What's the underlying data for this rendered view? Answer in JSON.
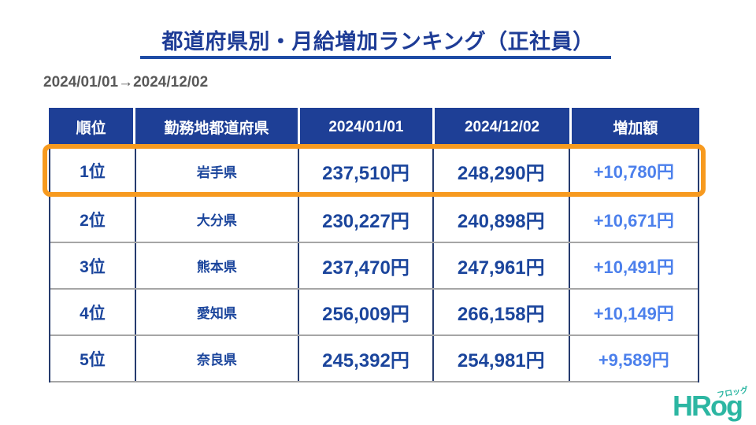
{
  "slide": {
    "title": "都道府県別・月給増加ランキング（正社員）",
    "period": "2024/01/01→2024/12/02"
  },
  "table": {
    "headers": [
      "順位",
      "勤務地都道府県",
      "2024/01/01",
      "2024/12/02",
      "増加額"
    ],
    "rows": [
      {
        "rank": "1位",
        "prefecture": "岩手県",
        "start": "237,510円",
        "end": "248,290円",
        "increase": "+10,780円",
        "highlighted": true
      },
      {
        "rank": "2位",
        "prefecture": "大分県",
        "start": "230,227円",
        "end": "240,898円",
        "increase": "+10,671円",
        "highlighted": false
      },
      {
        "rank": "3位",
        "prefecture": "熊本県",
        "start": "237,470円",
        "end": "247,961円",
        "increase": "+10,491円",
        "highlighted": false
      },
      {
        "rank": "4位",
        "prefecture": "愛知県",
        "start": "256,009円",
        "end": "266,158円",
        "increase": "+10,149円",
        "highlighted": false
      },
      {
        "rank": "5位",
        "prefecture": "奈良県",
        "start": "245,392円",
        "end": "254,981円",
        "increase": "+9,589円",
        "highlighted": false
      }
    ]
  },
  "logo": {
    "name": "HRog",
    "kana": "フロッグ"
  },
  "colors": {
    "title_text": "#1E3C96",
    "title_underline": "#1E4CA5",
    "period_text": "#595959",
    "header_bg": "#1E3F96",
    "header_text": "#FFFFFF",
    "body_text": "#1B459C",
    "increase_text": "#4C80EC",
    "row_divider": "#A6A6A6",
    "column_divider": "#263B6E",
    "highlight_border": "#F79A1F",
    "logo_teal": "#2CB6A2"
  }
}
